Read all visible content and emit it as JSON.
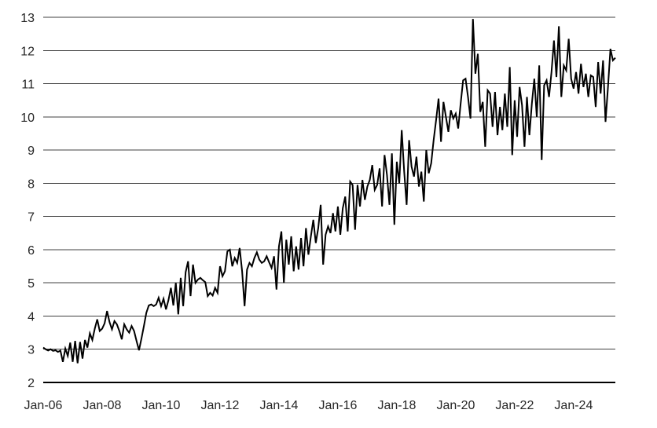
{
  "page": {
    "background_color": "#ffffff"
  },
  "chart_data": {
    "type": "line",
    "title": "",
    "xlabel": "",
    "ylabel": "",
    "x_start": "Jan-2006",
    "x_end": "Jun-2025",
    "frequency": "monthly",
    "x_tick_labels": [
      "Jan-06",
      "Jan-08",
      "Jan-10",
      "Jan-12",
      "Jan-14",
      "Jan-16",
      "Jan-18",
      "Jan-20",
      "Jan-22",
      "Jan-24"
    ],
    "x_tick_interval_months": 24,
    "y_ticks": [
      2,
      3,
      4,
      5,
      6,
      7,
      8,
      9,
      10,
      11,
      12,
      13
    ],
    "ylim": [
      2,
      13
    ],
    "grid": "horizontal",
    "legend_position": "none",
    "series": [
      {
        "name": "value",
        "color": "#000000",
        "values": [
          3.05,
          3.0,
          2.96,
          3.0,
          2.95,
          2.97,
          2.92,
          2.96,
          2.62,
          3.02,
          2.8,
          3.2,
          2.62,
          3.25,
          2.58,
          3.22,
          2.72,
          3.28,
          3.05,
          3.48,
          3.28,
          3.62,
          3.9,
          3.55,
          3.62,
          3.78,
          4.15,
          3.82,
          3.6,
          3.85,
          3.75,
          3.55,
          3.3,
          3.75,
          3.6,
          3.5,
          3.7,
          3.55,
          3.25,
          2.97,
          3.32,
          3.7,
          4.1,
          4.32,
          4.35,
          4.3,
          4.35,
          4.55,
          4.3,
          4.52,
          4.2,
          4.48,
          4.85,
          4.32,
          5.0,
          4.05,
          5.15,
          4.3,
          5.32,
          5.65,
          4.6,
          5.55,
          5.0,
          5.1,
          5.15,
          5.08,
          5.02,
          4.6,
          4.7,
          4.62,
          4.85,
          4.7,
          5.5,
          5.2,
          5.35,
          5.95,
          6.0,
          5.5,
          5.75,
          5.6,
          6.05,
          5.35,
          4.3,
          5.4,
          5.6,
          5.5,
          5.75,
          5.92,
          5.7,
          5.6,
          5.65,
          5.8,
          5.62,
          5.45,
          5.8,
          4.8,
          6.1,
          6.55,
          5.0,
          6.3,
          5.55,
          6.4,
          5.35,
          6.1,
          5.4,
          6.35,
          5.5,
          6.65,
          5.85,
          6.4,
          6.9,
          6.2,
          6.65,
          7.35,
          5.55,
          6.45,
          6.7,
          6.5,
          7.1,
          6.55,
          7.3,
          6.45,
          7.25,
          7.6,
          6.55,
          8.05,
          7.95,
          6.6,
          7.95,
          7.3,
          8.1,
          7.5,
          7.9,
          8.1,
          8.55,
          7.8,
          7.95,
          8.45,
          7.3,
          8.85,
          8.25,
          7.35,
          8.9,
          6.75,
          8.65,
          8.0,
          9.6,
          8.35,
          7.35,
          9.3,
          8.5,
          8.2,
          8.8,
          7.9,
          8.35,
          7.45,
          9.0,
          8.3,
          8.6,
          9.3,
          9.9,
          10.55,
          9.25,
          10.45,
          10.0,
          9.55,
          10.2,
          9.95,
          10.1,
          9.65,
          10.4,
          11.1,
          11.15,
          10.6,
          9.95,
          12.95,
          11.3,
          11.9,
          10.15,
          10.45,
          9.1,
          10.8,
          10.7,
          9.7,
          10.75,
          9.45,
          10.3,
          9.6,
          10.7,
          9.7,
          11.5,
          8.85,
          10.5,
          9.4,
          10.9,
          10.35,
          9.1,
          10.6,
          9.45,
          10.4,
          11.15,
          10.0,
          11.55,
          8.7,
          10.95,
          11.1,
          10.6,
          11.35,
          12.3,
          11.2,
          12.73,
          10.6,
          11.55,
          11.4,
          12.35,
          11.15,
          10.85,
          11.35,
          10.7,
          11.6,
          10.9,
          11.3,
          10.6,
          11.25,
          11.2,
          10.3,
          11.65,
          10.7,
          11.7,
          9.85,
          10.9,
          12.05,
          11.7,
          11.78
        ]
      }
    ],
    "styles": {
      "line_color": "#000000",
      "line_width": 2,
      "gridline_color": "#404040",
      "gridline_width": 1,
      "axis_color": "#000000",
      "axis_width": 2,
      "tick_label_color": "#262626"
    }
  }
}
